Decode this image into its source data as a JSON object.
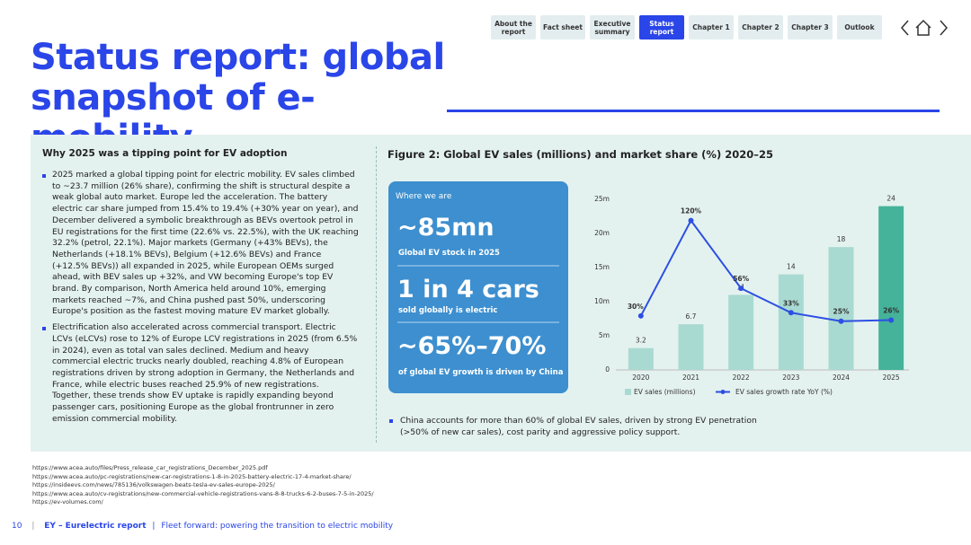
{
  "nav": {
    "items": [
      "About the report",
      "Fact sheet",
      "Executive summary",
      "Status report",
      "Chapter 1",
      "Chapter 2",
      "Chapter 3",
      "Outlook"
    ],
    "active": 3
  },
  "title": "Status report: global snapshot of e-mobility",
  "left": {
    "heading": "Why 2025 was a tipping point for EV adoption",
    "bullets": [
      "2025 marked a global tipping point for electric mobility. EV sales climbed to ~23.7 million (26% share), confirming the shift is structural despite a weak global auto market. Europe led the acceleration. The battery electric car share jumped from 15.4% to 19.4% (+30% year on year), and December delivered a symbolic breakthrough as BEVs overtook petrol in EU registrations for the first time (22.6% vs. 22.5%), with the UK reaching 32.2% (petrol, 22.1%). Major markets (Germany (+43% BEVs), the Netherlands (+18.1% BEVs), Belgium (+12.6% BEVs) and France (+12.5% BEVs)) all expanded in 2025, while European OEMs surged ahead, with BEV sales up +32%, and VW becoming Europe's top EV brand. By comparison, North America held around 10%, emerging markets reached ~7%, and China pushed past 50%, underscoring Europe's position as the fastest moving mature EV market globally.",
      "Electrification also accelerated across commercial transport. Electric LCVs (eLCVs) rose to 12% of Europe LCV registrations in 2025 (from 6.5% in 2024), even as total van sales declined. Medium and heavy commercial electric trucks nearly doubled, reaching 4.8% of European registrations driven by strong adoption in Germany, the Netherlands and France, while electric buses reached 25.9% of new registrations. Together, these trends show EV uptake is rapidly expanding beyond passenger cars, positioning Europe as the global frontrunner in zero emission commercial mobility."
    ]
  },
  "figure": {
    "stats_heading": "Where we are",
    "stats": [
      {
        "big": "~85mn",
        "small": "Global EV stock in 2025"
      },
      {
        "big": "1 in 4 cars",
        "small": "sold globally is electric"
      },
      {
        "big": "~65%–70%",
        "small": "of global EV growth is driven by China"
      }
    ],
    "note": "China accounts for more than 60% of global EV sales, driven by strong EV penetration (>50% of new car sales), cost parity and aggressive policy support."
  },
  "chart_data": {
    "type": "bar-line",
    "title": "Figure 2: Global EV sales (millions) and market share (%) 2020–25",
    "categories": [
      "2020",
      "2021",
      "2022",
      "2023",
      "2024",
      "2025"
    ],
    "series": [
      {
        "name": "EV sales (millions)",
        "type": "bar",
        "color": "#a9dad2",
        "colors": [
          "#a9dad2",
          "#a9dad2",
          "#a9dad2",
          "#a9dad2",
          "#a9dad2",
          "#45b399"
        ],
        "values": [
          3.2,
          6.7,
          11,
          14,
          18,
          24
        ]
      },
      {
        "name": "EV sales growth rate YoY (%)",
        "type": "line",
        "axis": "y2",
        "color": "#2d4fe3",
        "values": [
          30,
          120,
          56,
          33,
          25,
          26
        ],
        "value_labels": [
          "30%",
          "120%",
          "56%",
          "33%",
          "25%",
          "26%"
        ]
      }
    ],
    "ylim": [
      0,
      25
    ],
    "yticks": [
      0,
      {
        "value": 5,
        "label": "5m"
      },
      {
        "value": 10,
        "label": "10m"
      },
      {
        "value": 15,
        "label": "15m"
      },
      {
        "value": 20,
        "label": "20m"
      },
      {
        "value": 25,
        "label": "25m"
      }
    ],
    "y2lim": [
      -21,
      140
    ],
    "grid": false
  },
  "footnotes": [
    "https://www.acea.auto/files/Press_release_car_registrations_December_2025.pdf",
    "https://www.acea.auto/pc-registrations/new-car-registrations-1-8-in-2025-battery-electric-17-4-market-share/",
    "https://insideevs.com/news/785136/volkswagen-beats-tesla-ev-sales-europe-2025/",
    "https://www.acea.auto/cv-registrations/new-commercial-vehicle-registrations-vans-8-8-trucks-6-2-buses-7-5-in-2025/",
    "https://ev-volumes.com/"
  ],
  "footer": {
    "page": "10",
    "brand": "EY – Eurelectric report",
    "subtitle": "Fleet forward: powering the transition to electric mobility"
  }
}
